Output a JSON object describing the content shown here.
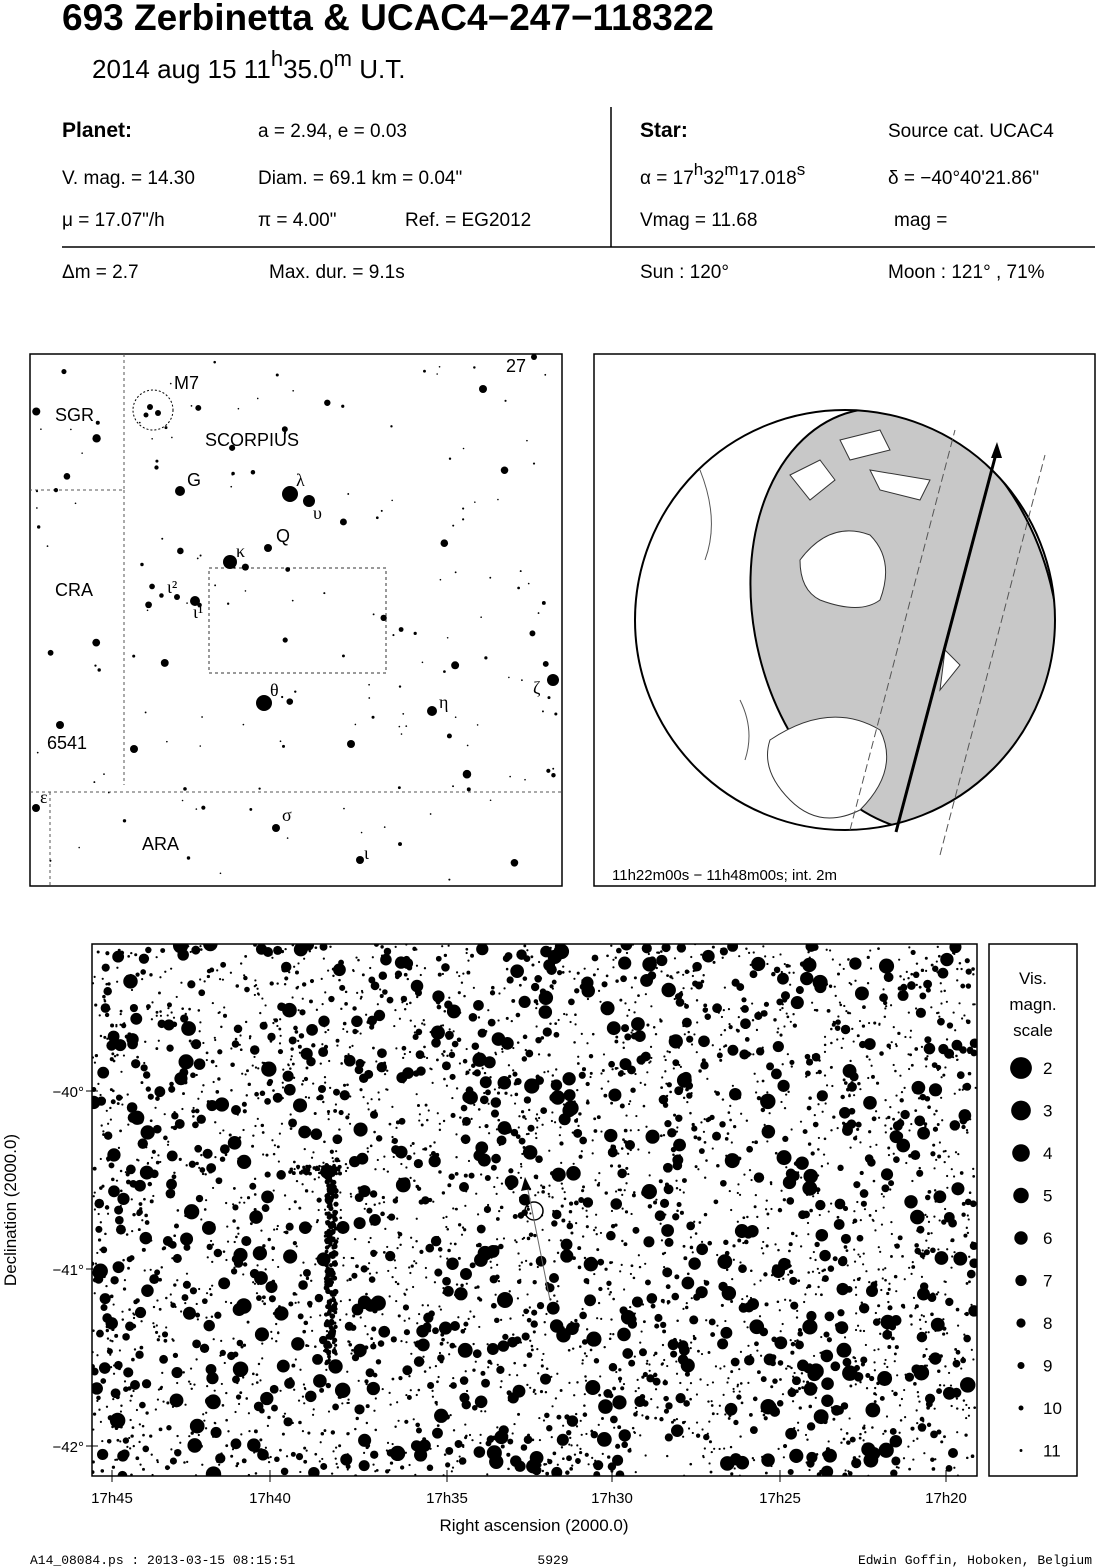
{
  "header": {
    "title": "693 Zerbinetta  &  UCAC4−247−118322",
    "date": "2014 aug 15  11",
    "hour_unit": "h",
    "minutes": "35.0",
    "minute_unit": "m",
    "time_scale": " U.T."
  },
  "info": {
    "planet_label": "Planet:",
    "orbit": "a = 2.94, e = 0.03",
    "vmag": "V. mag. = 14.30",
    "diam": "Diam. = 69.1 km = 0.04\"",
    "mu": "μ =  17.07\"/h",
    "parallax": "π =  4.00\"",
    "ref": "Ref. = EG2012",
    "star_label": "Star:",
    "source": "Source cat.  UCAC4",
    "ra": [
      "α = 17",
      "h",
      "32",
      "m",
      "17.018",
      "s"
    ],
    "dec": "δ = −40°40'21.86\"",
    "star_vmag": "Vmag = 11.68",
    "star_mag": "mag =",
    "dm": "Δm = 2.7",
    "max_dur": "Max. dur. = 9.1s",
    "sun": "Sun : 120°",
    "moon": "Moon : 121° , 71%"
  },
  "finder": {
    "labels": [
      "27",
      "M7",
      "SGR",
      "SCORPIUS",
      "G",
      "λ",
      "υ",
      "Q",
      "κ",
      "CRA",
      "ι²",
      "ι¹",
      "θ",
      "η",
      "ζ",
      "6541",
      "ε",
      "σ",
      "ARA",
      "ι"
    ]
  },
  "globe": {
    "caption": "11h22m00s − 11h48m00s; int.  2m"
  },
  "starfield": {
    "y_ticks": [
      "−40°",
      "−41°",
      "−42°"
    ],
    "x_ticks": [
      "17h45",
      "17h40",
      "17h35",
      "17h30",
      "17h25",
      "17h20"
    ],
    "x_label": "Right ascension (2000.0)",
    "y_label": "Declination (2000.0)",
    "legend_title": [
      "Vis.",
      "magn.",
      "scale"
    ],
    "legend_mags": [
      2,
      3,
      4,
      5,
      6,
      7,
      8,
      9,
      10,
      11
    ]
  },
  "footer": {
    "file": "A14_08084.ps : 2013-03-15 08:15:51",
    "number": "5929",
    "author": "Edwin Goffin, Hoboken, Belgium"
  }
}
